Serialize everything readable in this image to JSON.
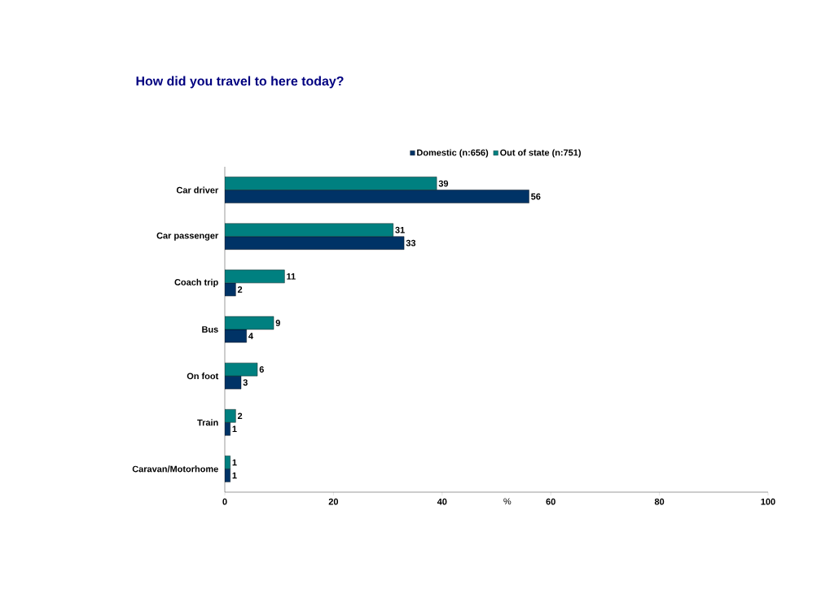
{
  "chart_data": {
    "type": "bar",
    "orientation": "horizontal",
    "title": "How did you travel to here today?",
    "xlabel": "%",
    "categories": [
      "Car driver",
      "Car passenger",
      "Coach trip",
      "Bus",
      "On foot",
      "Train",
      "Caravan/Motorhome"
    ],
    "series": [
      {
        "name": "Domestic (n:656)",
        "color": "#003366",
        "values": [
          56,
          33,
          2,
          4,
          3,
          1,
          1
        ]
      },
      {
        "name": "Out of state (n:751)",
        "color": "#008080",
        "values": [
          39,
          31,
          11,
          9,
          6,
          2,
          1
        ]
      }
    ],
    "xlim": [
      0,
      100
    ],
    "xticks": [
      0,
      20,
      40,
      60,
      80,
      100
    ],
    "data_labels": true,
    "legend": "top"
  }
}
